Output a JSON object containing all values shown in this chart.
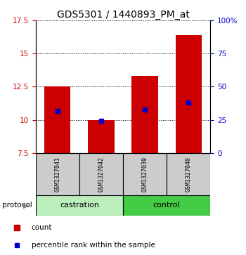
{
  "title": "GDS5301 / 1440893_PM_at",
  "samples": [
    "GSM1327041",
    "GSM1327042",
    "GSM1327039",
    "GSM1327040"
  ],
  "groups": [
    "castration",
    "castration",
    "control",
    "control"
  ],
  "bar_bottoms": [
    7.5,
    7.5,
    7.5,
    7.5
  ],
  "bar_tops": [
    12.5,
    10.0,
    13.3,
    16.4
  ],
  "blue_markers": [
    10.65,
    9.9,
    10.75,
    11.3
  ],
  "ylim": [
    7.5,
    17.5
  ],
  "yticks": [
    7.5,
    10.0,
    12.5,
    15.0,
    17.5
  ],
  "ytick_labels": [
    "7.5",
    "10",
    "12.5",
    "15",
    "17.5"
  ],
  "y2ticks": [
    0,
    25,
    50,
    75,
    100
  ],
  "y2tick_labels": [
    "0",
    "25",
    "50",
    "75",
    "100%"
  ],
  "bar_color": "#cc0000",
  "blue_color": "#0000cc",
  "bar_width": 0.6,
  "castration_color": "#bbeebb",
  "control_color": "#44cc44",
  "legend_count": "count",
  "legend_percentile": "percentile rank within the sample",
  "title_fontsize": 10,
  "left_color": "#cc0000",
  "right_color": "#0000cc",
  "sample_box_color": "#cccccc",
  "protocol_label": "protocol"
}
